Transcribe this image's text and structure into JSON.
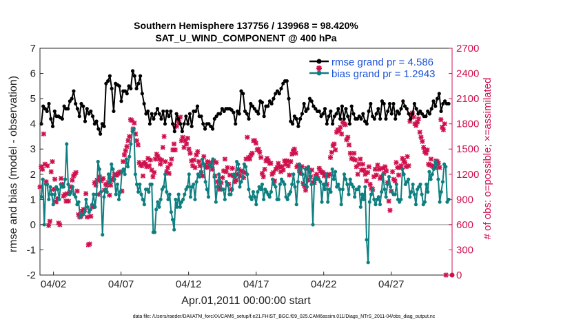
{
  "chart_data": {
    "type": "line",
    "title": "Southern Hemisphere 137756 / 139968 = 98.420%",
    "subtitle": "SAT_U_WIND_COMPONENT @ 400 hPa",
    "xlabel": "Apr.01,2011 00:00:00 start",
    "ylabel": "rmse and bias (model - observation)",
    "ylabel_right": "# of obs: o=possible; ×=assimilated",
    "ylim": [
      -2,
      7
    ],
    "ylim_right": [
      0,
      2700
    ],
    "yticks": [
      -2,
      -1,
      0,
      1,
      2,
      3,
      4,
      5,
      6,
      7
    ],
    "yticks_right": [
      0,
      300,
      600,
      900,
      1200,
      1500,
      1800,
      2100,
      2400,
      2700
    ],
    "xlim": [
      1.0,
      31.5
    ],
    "xticks": [
      2,
      7,
      12,
      17,
      22,
      27
    ],
    "xtick_labels": [
      "04/02",
      "04/07",
      "04/12",
      "04/17",
      "04/22",
      "04/27"
    ],
    "grid": false,
    "legend_position": "top-right",
    "footer": "data file: /Users/raeder/DAI/ATM_forcXX/CAM6_setup/f.e21.FHIST_BGC.f09_025.CAM6assim.011/Diags_NTrS_2011-04/obs_diag_output.nc",
    "colors": {
      "rmse": "#000000",
      "bias": "#0e7f80",
      "obs": "#d0104c",
      "zero_line": "#b3b3b3"
    },
    "series": [
      {
        "name": "rmse grand pr = 4.586",
        "color": "#000000",
        "y": [
          4.0,
          4.7,
          4.6,
          4.5,
          4.8,
          4.2,
          3.9,
          4.5,
          4.3,
          4.3,
          4.25,
          4.2,
          4.7,
          4.6,
          4.6,
          4.9,
          5.0,
          5.3,
          4.8,
          4.6,
          4.3,
          4.8,
          4.7,
          4.1,
          4.6,
          4.4,
          4.5,
          4.3,
          4.0,
          4.1,
          3.8,
          3.6,
          4.0,
          3.9,
          5.6,
          5.7,
          5.9,
          5.4,
          4.5,
          5.6,
          5.55,
          5.5,
          4.9,
          5.3,
          5.3,
          5.2,
          5.5,
          5.4,
          6.1,
          5.9,
          5.4,
          5.6,
          5.9,
          5.2,
          4.8,
          4.4,
          4.5,
          4.0,
          4.4,
          4.2,
          4.4,
          4.6,
          4.4,
          4.2,
          4.5,
          4.0,
          4.5,
          4.3,
          4.5,
          4.0,
          3.7,
          4.4,
          4.2,
          4.0,
          3.7,
          4.0,
          4.3,
          4.0,
          4.4,
          3.9,
          4.5,
          4.5,
          4.7,
          4.3,
          4.3,
          4.0,
          3.8,
          4.0,
          4.0,
          3.9,
          3.8,
          4.2,
          4.3,
          4.4,
          4.4,
          4.6,
          4.5,
          4.6,
          4.6,
          4.6,
          4.55,
          4.45,
          4.0,
          4.5,
          4.4,
          5.3,
          5.2,
          4.5,
          4.4,
          4.2,
          4.8,
          4.7,
          4.6,
          4.5,
          4.4,
          4.9,
          4.85,
          4.3,
          4.7,
          4.7,
          4.9,
          4.8,
          5.0,
          5.2,
          5.3,
          5.2,
          5.4,
          5.6,
          5.7,
          5.7,
          5.0,
          4.1,
          4.0,
          4.3,
          4.2,
          3.9,
          4.2,
          4.4,
          4.8,
          4.5,
          4.6,
          5.0,
          4.9,
          4.7,
          4.6,
          4.5,
          4.5,
          4.3,
          4.4,
          4.6,
          4.0,
          4.3,
          4.5,
          4.0,
          4.3,
          4.4,
          4.6,
          4.2,
          4.7,
          4.2,
          4.6,
          4.3,
          4.0,
          4.7,
          4.4,
          4.2,
          4.2,
          4.3,
          4.2,
          4.4,
          4.1,
          4.0,
          4.5,
          4.8,
          4.3,
          4.2,
          4.4,
          4.6,
          4.2,
          4.9,
          4.8,
          4.2,
          4.5,
          4.8,
          4.4,
          4.8,
          4.2,
          4.5,
          4.4,
          4.6,
          4.9,
          4.7,
          4.6,
          4.4,
          4.2,
          4.4,
          4.8,
          4.6,
          4.4,
          4.5,
          4.4,
          4.3,
          4.3,
          4.5,
          4.4,
          4.6,
          4.9,
          4.7,
          5.0,
          5.2,
          4.5,
          4.8,
          4.9,
          4.8,
          4.8
        ]
      },
      {
        "name": "bias grand pr = 1.2943",
        "color": "#0e7f80",
        "y": [
          1.1,
          1.8,
          0.0,
          1.6,
          1.6,
          1.0,
          1.5,
          1.2,
          0.8,
          1.2,
          1.5,
          1.4,
          1.0,
          1.6,
          1.5,
          1.5,
          1.8,
          3.2,
          1.6,
          1.2,
          1.3,
          1.5,
          1.2,
          1.1,
          0.8,
          0.9,
          0.3,
          0.4,
          0.4,
          0.5,
          1.0,
          0.7,
          0.5,
          0.6,
          0.8,
          1.2,
          0.7,
          1.2,
          2.5,
          2.2,
          1.3,
          -0.4,
          1.1,
          1.4,
          1.3,
          2.0,
          1.7,
          2.4,
          2.2,
          1.8,
          1.2,
          1.6,
          1.0,
          1.3,
          2.1,
          2.2,
          2.0,
          2.6,
          2.3,
          2.7,
          3.2,
          3.7,
          3.8,
          2.0,
          1.6,
          1.3,
          1.6,
          1.2,
          1.0,
          0.8,
          1.4,
          1.4,
          1.3,
          1.6,
          1.6,
          -0.3,
          -0.3,
          0.6,
          0.9,
          0.7,
          1.0,
          1.4,
          1.5,
          2.0,
          1.3,
          1.0,
          1.2,
          0.5,
          0.2,
          -0.2,
          1.0,
          0.7,
          1.2,
          0.7,
          0.9,
          1.0,
          1.2,
          1.4,
          1.5,
          2.0,
          1.1,
          1.5,
          1.6,
          1.0,
          1.7,
          2.0,
          1.9,
          2.1,
          2.6,
          2.4,
          1.7,
          1.4,
          1.1,
          2.4,
          2.3,
          2.6,
          1.9,
          0.9,
          1.5,
          2.0,
          1.7,
          1.4,
          1.4,
          1.0,
          1.7,
          1.6,
          1.2,
          1.2,
          1.4,
          2.0,
          1.9,
          2.5,
          2.4,
          1.5,
          1.7,
          1.9,
          2.4,
          2.3,
          2.0,
          1.4,
          1.1,
          1.0,
          1.3,
          1.1,
          0.8,
          1.3,
          1.5,
          1.4,
          1.6,
          1.0,
          1.4,
          1.3,
          1.2,
          1.1,
          1.3,
          1.8,
          1.6,
          1.5,
          1.0,
          1.0,
          1.6,
          1.8,
          1.7,
          1.6,
          1.1,
          1.0,
          1.2,
          1.3,
          1.6,
          2.0,
          1.5,
          0.8,
          1.7,
          2.4,
          2.2,
          2.0,
          1.6,
          2.2,
          1.5,
          2.3,
          2.1,
          1.6,
          0.0,
          1.8,
          1.9,
          1.8,
          1.8,
          1.7,
          0.9,
          1.6,
          1.4,
          2.0,
          0.9,
          1.4,
          1.3,
          2.2,
          1.8,
          2.1,
          1.5,
          1.6,
          1.4,
          0.8,
          1.4,
          2.0,
          1.8,
          1.6,
          1.2,
          1.8,
          1.6,
          1.5,
          1.1,
          1.4,
          1.4,
          1.5,
          0.7,
          1.2,
          1.0,
          1.5,
          -0.6,
          -1.5,
          0.9,
          1.2,
          1.4,
          1.0,
          0.8,
          1.0,
          1.1,
          0.8,
          1.3,
          2.0,
          1.4,
          1.1,
          1.6,
          1.9,
          1.5,
          1.3,
          1.2,
          1.2,
          1.6,
          1.0,
          0.9,
          1.0,
          2.2,
          2.0,
          1.6,
          1.7,
          1.8,
          1.1,
          1.3,
          1.6,
          1.2,
          0.8,
          1.4,
          1.5,
          1.6,
          1.2,
          0.8,
          0.9,
          1.6,
          1.3,
          2.1,
          1.8,
          2.0,
          2.2,
          2.5,
          2.4,
          1.8,
          0.9,
          1.3,
          1.7,
          2.4,
          2.3,
          0.9,
          1.0
        ]
      }
    ],
    "obs_assimilated": [
      1050,
      1290,
      1260,
      1680,
      1320,
      1110,
      1300,
      590,
      640,
      1230,
      1350,
      1020,
      1140,
      870,
      910,
      620,
      600,
      1150,
      1080,
      940,
      960,
      880,
      970,
      880,
      990,
      1050,
      1130,
      1180,
      1200,
      1220,
      1000,
      720,
      690,
      700,
      760,
      780,
      780,
      970,
      690,
      360,
      370,
      700,
      810,
      820,
      1100,
      1070,
      1130,
      960,
      1170,
      1120,
      1140,
      1150,
      1010,
      1080,
      1070,
      1100,
      950,
      1070,
      1130,
      1150,
      1200,
      1190,
      1190,
      1210,
      1220,
      1230,
      1000,
      1350,
      1430,
      1480,
      1530,
      1600,
      1650,
      1850,
      1840,
      1740,
      1810,
      1680,
      1600,
      1550,
      1340,
      1310,
      1300,
      1180,
      1340,
      1320,
      1290,
      1390,
      1300,
      1370,
      1250,
      1170,
      1220,
      1380,
      1440,
      1410,
      1380,
      1320,
      1370,
      1520,
      1650,
      1350,
      1230,
      1280,
      1210,
      1320,
      1380,
      1490,
      1560,
      1490,
      1770,
      1850,
      1820,
      1880,
      1600,
      1640,
      1520,
      1600,
      1560,
      1630,
      1500,
      1450,
      1360,
      1300,
      1370,
      1280,
      1430,
      1470,
      1350,
      1300,
      1220,
      1180,
      1410,
      1310,
      1280,
      1350,
      1310,
      1290,
      1340,
      1260,
      1360,
      1180,
      1340,
      1110,
      1050,
      1020,
      1100,
      1160,
      1240,
      1380,
      1230,
      1280,
      1080,
      1190,
      1020,
      1270,
      1180,
      1110,
      1130,
      1200,
      1260,
      1180,
      1240,
      1230,
      1160,
      1220,
      1380,
      1640,
      1400,
      1380,
      1430,
      1450,
      1600,
      1600,
      1570,
      1490,
      1500,
      1460,
      1400,
      1210,
      1170,
      1260,
      1360,
      1390,
      1360,
      1330,
      1330,
      1200,
      1220,
      1120,
      1260,
      1280,
      1330,
      1290,
      1230,
      1290,
      1250,
      1360,
      1320,
      1360,
      1300,
      1190,
      1350,
      1440,
      1480,
      1500,
      1450,
      1290,
      1310,
      1240,
      1210,
      1290,
      1090,
      1060,
      1010,
      1270,
      1130,
      1230,
      1170,
      1250,
      1100,
      1100,
      1180,
      1200,
      1150,
      1270,
      1240,
      1220,
      1220,
      1180,
      1200,
      1080,
      1180,
      1200,
      1400,
      1460,
      1540,
      1560,
      1490,
      1700,
      1730,
      1720,
      1760,
      1680,
      1820,
      1800,
      1790,
      1610,
      1640,
      1550,
      1450,
      1390,
      1380,
      1450,
      1370,
      1290,
      1200,
      1320,
      1380,
      1250,
      1320,
      1250,
      1200,
      1120,
      1220,
      1290,
      1080,
      1030,
      1020,
      1170,
      1260,
      1190,
      1310,
      1260,
      1150,
      1170,
      1270,
      1210,
      1290,
      1240,
      1100,
      880,
      770,
      1000,
      1230,
      1140,
      1120,
      1340,
      1280,
      1190,
      1280,
      1300,
      1390,
      1360,
      1340,
      1290,
      1410,
      1300,
      1830,
      1910,
      1930,
      1880,
      1800,
      1780,
      1820,
      1860,
      1700,
      1640,
      1590,
      1520,
      1470,
      1450,
      1490,
      1320,
      1310,
      1380,
      1300,
      1290,
      1280,
      1360,
      1350,
      1330,
      1280,
      1850,
      1760,
      1730,
      1800,
      0
    ]
  }
}
